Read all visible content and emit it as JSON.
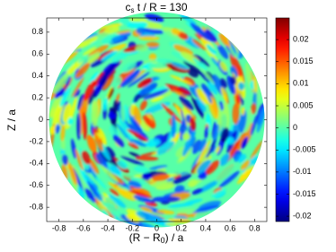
{
  "chart_data": {
    "type": "field",
    "title_parts": [
      "c",
      "s",
      " t / R = 130"
    ],
    "xlabel_parts": [
      "(R − R",
      "0",
      ") / a"
    ],
    "ylabel": "Z / a",
    "xlim": [
      -0.9,
      0.9
    ],
    "ylim": [
      -0.93,
      0.93
    ],
    "xticks": [
      -0.8,
      -0.6,
      -0.4,
      -0.2,
      0,
      0.2,
      0.4,
      0.6,
      0.8
    ],
    "yticks": [
      -0.8,
      -0.6,
      -0.4,
      -0.2,
      0,
      0.2,
      0.4,
      0.6,
      0.8
    ],
    "colormap": "jet",
    "clim": [
      -0.0212,
      0.0249
    ],
    "cticks": [
      -0.02,
      -0.015,
      -0.01,
      -0.005,
      0,
      0.005,
      0.01,
      0.015,
      0.02
    ]
  }
}
